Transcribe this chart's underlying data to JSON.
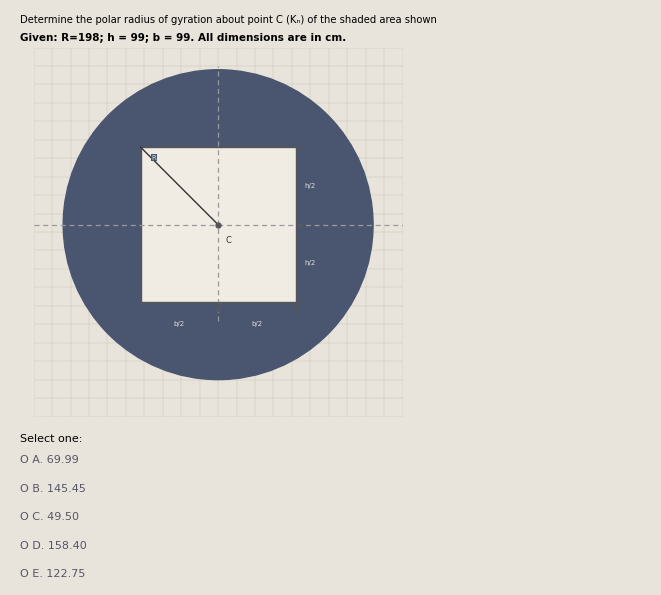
{
  "title_line1": "Determine the polar radius of gyration about point C (Kₙ) of the shaded area shown",
  "title_line2": "Given: R=198; h = 99; b = 99. All dimensions are in cm.",
  "background_color": "#e8e4dc",
  "panel_color": "#ddd8ce",
  "panel_border": "#cccccc",
  "circle_color": "#4a5570",
  "square_color": "#f0ece4",
  "square_edge_color": "#555555",
  "dashed_color": "#999999",
  "line_color": "#333333",
  "label_color": "#555555",
  "label_bg": "#4a5570",
  "label_text": "#e0ddd8",
  "select_label": "Select one:",
  "options": [
    "O A. 69.99",
    "O B. 145.45",
    "O C. 49.50",
    "O D. 158.40",
    "O E. 122.75"
  ],
  "fig_width": 6.61,
  "fig_height": 5.95,
  "dpi": 100
}
